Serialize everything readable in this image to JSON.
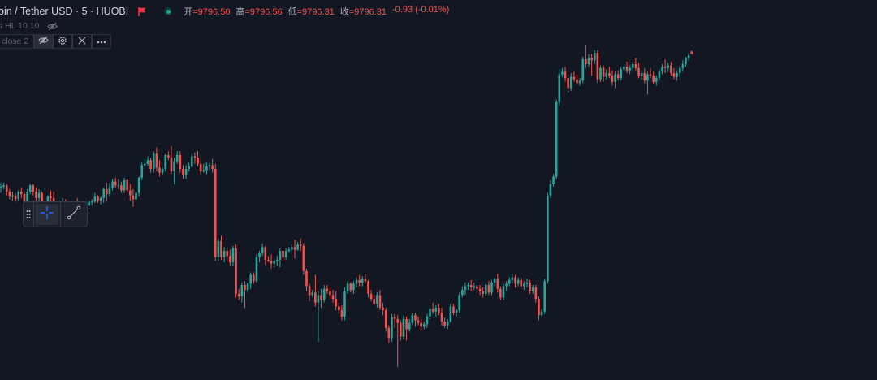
{
  "header": {
    "title": "oin / Tether USD · 5 · HUOBI",
    "ohlc": [
      {
        "label": "开",
        "value": "=9796.50"
      },
      {
        "label": "高",
        "value": "=9796.56"
      },
      {
        "label": "低",
        "value": "=9796.31"
      },
      {
        "label": "收",
        "value": "=9796.31"
      }
    ],
    "change": "-0.93 (-0.01%)",
    "indicator": "s HL 10 10",
    "study": "close 2"
  },
  "toolbar": {
    "icons": [
      "eye-off-icon",
      "gear-icon",
      "close-icon",
      "more-icon"
    ],
    "drawing_tools": [
      "crosshair-icon",
      "trend-line-icon"
    ]
  },
  "colors": {
    "background": "#131722",
    "up": "#26a69a",
    "down": "#ef5350",
    "text": "#d1d4dc",
    "accent": "#2962ff"
  },
  "chart_data": {
    "type": "candlestick",
    "title": "",
    "xlabel": "",
    "ylabel": "",
    "grid": false,
    "candles": [
      [
        9785.7,
        9786.1,
        9785.3,
        9785.8
      ],
      [
        9785.8,
        9786.1,
        9785.6,
        9785.9
      ],
      [
        9785.9,
        9786.0,
        9785.1,
        9785.4
      ],
      [
        9785.4,
        9785.6,
        9784.8,
        9785.0
      ],
      [
        9785.0,
        9785.4,
        9784.7,
        9785.1
      ],
      [
        9785.1,
        9785.3,
        9784.6,
        9784.8
      ],
      [
        9784.8,
        9785.5,
        9784.7,
        9785.4
      ],
      [
        9785.4,
        9785.7,
        9784.9,
        9785.2
      ],
      [
        9785.2,
        9785.4,
        9784.4,
        9784.6
      ],
      [
        9784.6,
        9785.6,
        9784.3,
        9785.4
      ],
      [
        9785.4,
        9786.0,
        9785.2,
        9785.9
      ],
      [
        9785.9,
        9786.0,
        9785.1,
        9785.4
      ],
      [
        9785.4,
        9785.7,
        9784.7,
        9784.9
      ],
      [
        9784.9,
        9785.6,
        9784.6,
        9785.3
      ],
      [
        9785.3,
        9785.4,
        9784.0,
        9784.2
      ],
      [
        9784.2,
        9784.6,
        9784.0,
        9784.4
      ],
      [
        9784.4,
        9785.1,
        9784.3,
        9785.0
      ],
      [
        9785.0,
        9785.5,
        9784.6,
        9784.9
      ],
      [
        9784.9,
        9785.4,
        9783.5,
        9783.8
      ],
      [
        9783.8,
        9784.5,
        9783.6,
        9784.2
      ],
      [
        9784.2,
        9784.7,
        9783.8,
        9784.0
      ],
      [
        9784.0,
        9784.9,
        9783.7,
        9784.6
      ],
      [
        9784.6,
        9784.8,
        9783.4,
        9783.7
      ],
      [
        9783.7,
        9784.0,
        9783.2,
        9783.8
      ],
      [
        9783.8,
        9784.3,
        9783.3,
        9783.5
      ],
      [
        9783.5,
        9784.6,
        9783.4,
        9784.4
      ],
      [
        9784.4,
        9784.9,
        9783.8,
        9784.0
      ],
      [
        9784.0,
        9784.4,
        9783.0,
        9783.3
      ],
      [
        9783.3,
        9784.4,
        9783.1,
        9784.1
      ],
      [
        9784.1,
        9784.6,
        9783.7,
        9784.3
      ],
      [
        9784.3,
        9784.7,
        9784.0,
        9784.6
      ],
      [
        9784.6,
        9784.8,
        9784.3,
        9784.6
      ],
      [
        9784.6,
        9785.3,
        9784.5,
        9785.0
      ],
      [
        9785.0,
        9785.1,
        9784.5,
        9784.7
      ],
      [
        9784.7,
        9785.0,
        9784.4,
        9784.9
      ],
      [
        9784.9,
        9785.7,
        9784.5,
        9785.6
      ],
      [
        9785.6,
        9786.1,
        9784.6,
        9785.2
      ],
      [
        9785.2,
        9786.1,
        9785.0,
        9785.7
      ],
      [
        9785.7,
        9786.4,
        9785.5,
        9786.2
      ],
      [
        9786.2,
        9786.5,
        9785.7,
        9785.9
      ],
      [
        9785.9,
        9786.4,
        9785.6,
        9785.9
      ],
      [
        9785.9,
        9786.2,
        9785.3,
        9785.5
      ],
      [
        9785.5,
        9786.5,
        9785.3,
        9786.3
      ],
      [
        9786.3,
        9786.4,
        9785.3,
        9785.5
      ],
      [
        9785.5,
        9786.0,
        9784.7,
        9785.1
      ],
      [
        9785.1,
        9785.6,
        9784.2,
        9784.8
      ],
      [
        9784.8,
        9785.5,
        9784.6,
        9785.3
      ],
      [
        9785.3,
        9786.6,
        9785.0,
        9786.5
      ],
      [
        9786.5,
        9787.7,
        9786.3,
        9787.5
      ],
      [
        9787.5,
        9788.0,
        9787.3,
        9787.6
      ],
      [
        9787.6,
        9788.2,
        9787.4,
        9787.9
      ],
      [
        9787.9,
        9788.1,
        9786.9,
        9787.2
      ],
      [
        9787.2,
        9788.6,
        9786.9,
        9788.4
      ],
      [
        9788.4,
        9788.9,
        9787.0,
        9787.3
      ],
      [
        9787.3,
        9787.9,
        9786.6,
        9786.9
      ],
      [
        9786.9,
        9787.3,
        9786.7,
        9787.2
      ],
      [
        9787.2,
        9788.4,
        9787.0,
        9788.3
      ],
      [
        9788.3,
        9788.6,
        9787.9,
        9788.1
      ],
      [
        9788.1,
        9789.0,
        9786.8,
        9787.0
      ],
      [
        9787.0,
        9788.1,
        9786.0,
        9787.8
      ],
      [
        9787.8,
        9788.6,
        9787.6,
        9788.3
      ],
      [
        9788.3,
        9788.6,
        9786.9,
        9787.2
      ],
      [
        9787.2,
        9787.5,
        9786.4,
        9786.7
      ],
      [
        9786.7,
        9787.5,
        9786.4,
        9787.2
      ],
      [
        9787.2,
        9787.7,
        9787.0,
        9787.4
      ],
      [
        9787.4,
        9788.4,
        9787.3,
        9788.2
      ],
      [
        9788.2,
        9788.5,
        9787.6,
        9788.1
      ],
      [
        9788.1,
        9788.6,
        9787.4,
        9787.6
      ],
      [
        9787.6,
        9787.8,
        9786.8,
        9787.0
      ],
      [
        9787.0,
        9787.6,
        9786.9,
        9787.1
      ],
      [
        9787.1,
        9787.7,
        9786.8,
        9787.4
      ],
      [
        9787.4,
        9787.7,
        9787.1,
        9787.5
      ],
      [
        9787.5,
        9788.0,
        9786.9,
        9787.2
      ],
      [
        9787.2,
        9787.6,
        9779.9,
        9780.2
      ],
      [
        9780.2,
        9781.7,
        9779.9,
        9781.5
      ],
      [
        9781.5,
        9781.9,
        9780.0,
        9780.2
      ],
      [
        9780.2,
        9781.0,
        9779.8,
        9780.7
      ],
      [
        9780.7,
        9781.0,
        9779.9,
        9780.3
      ],
      [
        9780.3,
        9780.8,
        9779.5,
        9779.8
      ],
      [
        9779.8,
        9781.1,
        9779.5,
        9780.9
      ],
      [
        9780.9,
        9781.2,
        9777.0,
        9777.3
      ],
      [
        9777.3,
        9777.7,
        9776.8,
        9777.1
      ],
      [
        9777.1,
        9778.2,
        9776.6,
        9778.0
      ],
      [
        9778.0,
        9778.3,
        9776.2,
        9777.6
      ],
      [
        9777.6,
        9778.2,
        9777.4,
        9778.1
      ],
      [
        9778.1,
        9779.0,
        9777.7,
        9778.8
      ],
      [
        9778.8,
        9779.0,
        9778.1,
        9778.3
      ],
      [
        9778.3,
        9780.4,
        9778.2,
        9780.2
      ],
      [
        9780.2,
        9780.7,
        9779.8,
        9780.5
      ],
      [
        9780.5,
        9781.3,
        9780.3,
        9781.0
      ],
      [
        9781.0,
        9781.1,
        9779.6,
        9780.0
      ],
      [
        9780.0,
        9780.3,
        9779.8,
        9779.9
      ],
      [
        9779.9,
        9780.4,
        9779.3,
        9779.7
      ],
      [
        9779.7,
        9780.0,
        9779.4,
        9779.9
      ],
      [
        9779.9,
        9780.3,
        9779.5,
        9780.0
      ],
      [
        9780.0,
        9780.9,
        9779.4,
        9780.7
      ],
      [
        9780.7,
        9780.8,
        9779.9,
        9780.2
      ],
      [
        9780.2,
        9780.9,
        9780.0,
        9780.7
      ],
      [
        9780.7,
        9781.0,
        9780.6,
        9780.8
      ],
      [
        9780.8,
        9781.2,
        9780.5,
        9781.0
      ],
      [
        9781.0,
        9781.6,
        9780.1,
        9780.8
      ],
      [
        9780.8,
        9781.4,
        9780.7,
        9781.2
      ],
      [
        9781.2,
        9781.7,
        9780.7,
        9781.1
      ],
      [
        9781.1,
        9781.3,
        9778.8,
        9779.1
      ],
      [
        9779.1,
        9779.3,
        9777.5,
        9777.9
      ],
      [
        9777.9,
        9778.1,
        9776.7,
        9777.2
      ],
      [
        9777.2,
        9777.6,
        9777.0,
        9777.4
      ],
      [
        9777.4,
        9778.8,
        9776.3,
        9776.6
      ],
      [
        9776.6,
        9777.5,
        9773.5,
        9777.2
      ],
      [
        9777.2,
        9777.7,
        9776.2,
        9776.8
      ],
      [
        9776.8,
        9778.0,
        9776.6,
        9777.7
      ],
      [
        9777.7,
        9778.0,
        9777.3,
        9777.5
      ],
      [
        9777.5,
        9777.8,
        9776.9,
        9777.2
      ],
      [
        9777.2,
        9777.6,
        9776.6,
        9776.9
      ],
      [
        9776.9,
        9777.5,
        9776.0,
        9776.3
      ],
      [
        9776.3,
        9776.6,
        9775.7,
        9776.0
      ],
      [
        9776.0,
        9776.4,
        9775.2,
        9775.5
      ],
      [
        9775.5,
        9777.8,
        9775.2,
        9777.5
      ],
      [
        9777.5,
        9778.3,
        9777.3,
        9778.1
      ],
      [
        9778.1,
        9778.2,
        9777.4,
        9777.6
      ],
      [
        9777.6,
        9778.3,
        9777.3,
        9778.1
      ],
      [
        9778.1,
        9778.6,
        9777.8,
        9778.4
      ],
      [
        9778.4,
        9778.8,
        9777.9,
        9778.2
      ],
      [
        9778.2,
        9778.7,
        9777.9,
        9778.5
      ],
      [
        9778.5,
        9778.9,
        9778.1,
        9778.3
      ],
      [
        9778.3,
        9778.4,
        9777.0,
        9777.3
      ],
      [
        9777.3,
        9777.6,
        9776.7,
        9776.9
      ],
      [
        9776.9,
        9777.2,
        9776.4,
        9776.5
      ],
      [
        9776.5,
        9777.4,
        9776.2,
        9777.2
      ],
      [
        9777.2,
        9777.6,
        9776.0,
        9776.2
      ],
      [
        9776.2,
        9776.6,
        9775.6,
        9776.0
      ],
      [
        9776.0,
        9776.2,
        9774.3,
        9774.6
      ],
      [
        9774.6,
        9774.8,
        9773.4,
        9773.8
      ],
      [
        9773.8,
        9775.7,
        9773.5,
        9775.5
      ],
      [
        9775.5,
        9775.7,
        9774.6,
        9775.3
      ],
      [
        9775.3,
        9775.6,
        9771.5,
        9775.0
      ],
      [
        9775.0,
        9775.2,
        9773.6,
        9773.9
      ],
      [
        9773.9,
        9775.6,
        9773.7,
        9775.3
      ],
      [
        9775.3,
        9775.5,
        9773.6,
        9774.5
      ],
      [
        9774.5,
        9775.3,
        9774.3,
        9775.0
      ],
      [
        9775.0,
        9775.8,
        9774.8,
        9775.6
      ],
      [
        9775.6,
        9775.8,
        9774.7,
        9775.2
      ],
      [
        9775.2,
        9775.5,
        9774.8,
        9775.0
      ],
      [
        9775.0,
        9775.3,
        9774.4,
        9774.7
      ],
      [
        9774.7,
        9775.1,
        9774.5,
        9774.9
      ],
      [
        9774.9,
        9775.7,
        9774.6,
        9775.5
      ],
      [
        9775.5,
        9776.4,
        9775.3,
        9776.1
      ],
      [
        9776.1,
        9776.6,
        9775.7,
        9775.9
      ],
      [
        9775.9,
        9776.4,
        9775.5,
        9776.2
      ],
      [
        9776.2,
        9776.5,
        9775.6,
        9775.8
      ],
      [
        9775.8,
        9776.2,
        9774.8,
        9775.1
      ],
      [
        9775.1,
        9775.4,
        9774.6,
        9774.8
      ],
      [
        9774.8,
        9775.3,
        9774.5,
        9775.1
      ],
      [
        9775.1,
        9776.5,
        9775.0,
        9776.3
      ],
      [
        9776.3,
        9776.5,
        9775.6,
        9775.8
      ],
      [
        9775.8,
        9776.1,
        9775.5,
        9776.0
      ],
      [
        9776.0,
        9777.4,
        9775.8,
        9777.2
      ],
      [
        9777.2,
        9777.9,
        9777.0,
        9777.6
      ],
      [
        9777.6,
        9778.2,
        9777.2,
        9777.9
      ],
      [
        9777.9,
        9778.2,
        9777.6,
        9778.0
      ],
      [
        9778.0,
        9778.4,
        9777.5,
        9777.8
      ],
      [
        9777.8,
        9778.2,
        9777.6,
        9777.9
      ],
      [
        9777.9,
        9778.0,
        9777.4,
        9777.7
      ],
      [
        9777.7,
        9778.0,
        9777.2,
        9777.5
      ],
      [
        9777.5,
        9777.8,
        9777.0,
        9777.3
      ],
      [
        9777.3,
        9778.1,
        9777.1,
        9778.0
      ],
      [
        9778.0,
        9778.3,
        9777.2,
        9777.4
      ],
      [
        9777.4,
        9778.4,
        9777.2,
        9778.2
      ],
      [
        9778.2,
        9778.6,
        9777.9,
        9778.5
      ],
      [
        9778.5,
        9778.9,
        9777.4,
        9777.7
      ],
      [
        9777.7,
        9777.9,
        9776.8,
        9777.0
      ],
      [
        9777.0,
        9778.1,
        9776.8,
        9777.9
      ],
      [
        9777.9,
        9778.3,
        9777.5,
        9778.1
      ],
      [
        9778.1,
        9778.6,
        9777.9,
        9778.4
      ],
      [
        9778.4,
        9778.9,
        9778.1,
        9778.6
      ],
      [
        9778.6,
        9778.8,
        9777.8,
        9778.1
      ],
      [
        9778.1,
        9778.6,
        9777.9,
        9778.4
      ],
      [
        9778.4,
        9778.6,
        9777.7,
        9777.9
      ],
      [
        9777.9,
        9778.3,
        9777.6,
        9778.1
      ],
      [
        9778.1,
        9778.5,
        9777.8,
        9778.2
      ],
      [
        9778.2,
        9778.4,
        9777.3,
        9777.5
      ],
      [
        9777.5,
        9778.0,
        9777.3,
        9777.8
      ],
      [
        9777.8,
        9778.0,
        9776.6,
        9776.9
      ],
      [
        9776.9,
        9777.1,
        9775.2,
        9775.6
      ],
      [
        9775.6,
        9776.1,
        9775.4,
        9775.9
      ],
      [
        9775.9,
        9778.5,
        9775.7,
        9778.3
      ],
      [
        9778.3,
        9785.3,
        9778.1,
        9785.1
      ],
      [
        9785.1,
        9786.3,
        9784.9,
        9786.0
      ],
      [
        9786.0,
        9786.8,
        9785.8,
        9786.6
      ],
      [
        9786.6,
        9792.7,
        9786.4,
        9792.5
      ],
      [
        9792.5,
        9795.1,
        9792.2,
        9794.7
      ],
      [
        9794.7,
        9795.2,
        9794.5,
        9794.9
      ],
      [
        9794.9,
        9795.3,
        9794.1,
        9794.4
      ],
      [
        9794.4,
        9794.7,
        9793.3,
        9793.6
      ],
      [
        9793.6,
        9794.8,
        9793.4,
        9794.5
      ],
      [
        9794.5,
        9794.9,
        9794.1,
        9794.3
      ],
      [
        9794.3,
        9794.7,
        9793.9,
        9794.0
      ],
      [
        9794.0,
        9794.4,
        9793.8,
        9794.2
      ],
      [
        9794.2,
        9796.1,
        9794.0,
        9795.9
      ],
      [
        9795.9,
        9797.0,
        9795.2,
        9795.5
      ],
      [
        9795.5,
        9796.3,
        9795.3,
        9796.0
      ],
      [
        9796.0,
        9796.3,
        9794.6,
        9795.8
      ],
      [
        9795.8,
        9796.6,
        9795.5,
        9796.4
      ],
      [
        9796.4,
        9796.6,
        9794.0,
        9794.3
      ],
      [
        9794.3,
        9795.4,
        9794.1,
        9795.2
      ],
      [
        9795.2,
        9795.4,
        9794.1,
        9794.5
      ],
      [
        9794.5,
        9795.1,
        9794.3,
        9794.8
      ],
      [
        9794.8,
        9795.3,
        9794.4,
        9794.6
      ],
      [
        9794.6,
        9795.0,
        9793.8,
        9794.1
      ],
      [
        9794.1,
        9794.9,
        9793.6,
        9794.7
      ],
      [
        9794.7,
        9795.0,
        9794.2,
        9794.4
      ],
      [
        9794.4,
        9795.3,
        9794.2,
        9795.1
      ],
      [
        9795.1,
        9795.5,
        9794.9,
        9795.3
      ],
      [
        9795.3,
        9795.7,
        9794.8,
        9795.0
      ],
      [
        9795.0,
        9795.4,
        9794.7,
        9795.2
      ],
      [
        9795.2,
        9795.7,
        9794.9,
        9795.5
      ],
      [
        9795.5,
        9796.0,
        9795.0,
        9795.2
      ],
      [
        9795.2,
        9795.6,
        9794.4,
        9794.6
      ],
      [
        9794.6,
        9795.0,
        9794.3,
        9794.8
      ],
      [
        9794.8,
        9795.2,
        9794.0,
        9794.2
      ],
      [
        9794.2,
        9794.9,
        9793.1,
        9794.7
      ],
      [
        9794.7,
        9795.2,
        9794.4,
        9794.6
      ],
      [
        9794.6,
        9794.9,
        9793.9,
        9794.1
      ],
      [
        9794.1,
        9794.6,
        9793.8,
        9794.4
      ],
      [
        9794.4,
        9795.1,
        9794.2,
        9794.9
      ],
      [
        9794.9,
        9795.5,
        9794.7,
        9795.3
      ],
      [
        9795.3,
        9795.9,
        9794.8,
        9795.2
      ],
      [
        9795.2,
        9795.6,
        9794.9,
        9795.4
      ],
      [
        9795.4,
        9795.7,
        9794.6,
        9794.8
      ],
      [
        9794.8,
        9795.2,
        9794.3,
        9794.5
      ],
      [
        9794.5,
        9795.0,
        9794.2,
        9794.8
      ],
      [
        9794.8,
        9795.4,
        9794.5,
        9795.2
      ],
      [
        9795.2,
        9795.8,
        9794.9,
        9795.5
      ],
      [
        9795.5,
        9796.1,
        9795.3,
        9796.0
      ],
      [
        9796.0,
        9796.4,
        9795.8,
        9796.2
      ],
      [
        9796.5,
        9796.56,
        9796.31,
        9796.31
      ]
    ]
  }
}
